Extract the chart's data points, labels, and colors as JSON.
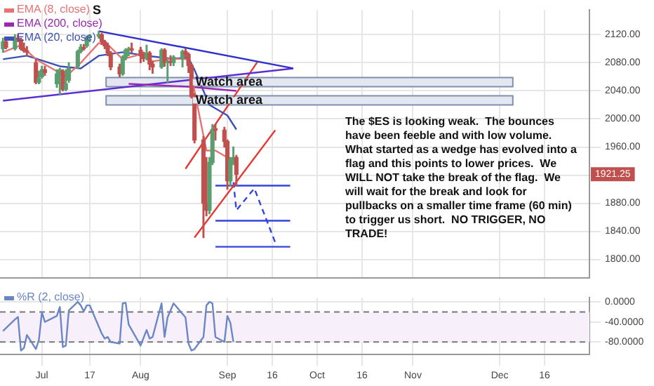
{
  "chart_data": [
    {
      "type": "candlestick",
      "x": [
        "--06-18",
        "--06-19",
        "--06-22",
        "--06-23",
        "--06-24",
        "--06-25",
        "--06-26",
        "--06-29",
        "--06-30",
        "--07-01",
        "--07-02",
        "--07-06",
        "--07-07",
        "--07-08",
        "--07-09",
        "--07-10",
        "--07-13",
        "--07-14",
        "--07-15",
        "--07-16",
        "--07-17",
        "--07-20",
        "--07-21",
        "--07-22",
        "--07-23",
        "--07-24",
        "--07-27",
        "--07-28",
        "--07-29",
        "--07-30",
        "--07-31",
        "--08-03",
        "--08-04",
        "--08-05",
        "--08-06",
        "--08-07",
        "--08-10",
        "--08-11",
        "--08-12",
        "--08-13",
        "--08-14",
        "--08-17",
        "--08-18",
        "--08-19",
        "--08-20",
        "--08-21",
        "--08-24",
        "--08-25",
        "--08-26",
        "--08-27",
        "--08-28",
        "--08-31",
        "--09-01",
        "--09-02",
        "--09-03",
        "--09-04"
      ],
      "ohlc": [
        [
          2100,
          2115,
          2095,
          2110
        ],
        [
          2110,
          2112,
          2100,
          2102
        ],
        [
          2100,
          2120,
          2098,
          2115
        ],
        [
          2115,
          2120,
          2110,
          2113
        ],
        [
          2113,
          2115,
          2098,
          2100
        ],
        [
          2100,
          2108,
          2095,
          2097
        ],
        [
          2097,
          2103,
          2090,
          2095
        ],
        [
          2080,
          2085,
          2050,
          2052
        ],
        [
          2052,
          2068,
          2050,
          2058
        ],
        [
          2060,
          2075,
          2058,
          2070
        ],
        [
          2070,
          2075,
          2062,
          2066
        ],
        [
          2050,
          2070,
          2045,
          2064
        ],
        [
          2064,
          2072,
          2035,
          2070
        ],
        [
          2068,
          2070,
          2040,
          2042
        ],
        [
          2042,
          2070,
          2040,
          2050
        ],
        [
          2055,
          2080,
          2052,
          2072
        ],
        [
          2075,
          2098,
          2072,
          2096
        ],
        [
          2096,
          2106,
          2094,
          2102
        ],
        [
          2102,
          2106,
          2098,
          2100
        ],
        [
          2104,
          2118,
          2102,
          2116
        ],
        [
          2116,
          2120,
          2110,
          2118
        ],
        [
          2118,
          2125,
          2115,
          2120
        ],
        [
          2120,
          2122,
          2106,
          2110
        ],
        [
          2110,
          2112,
          2100,
          2104
        ],
        [
          2104,
          2108,
          2090,
          2094
        ],
        [
          2094,
          2096,
          2070,
          2074
        ],
        [
          2074,
          2078,
          2060,
          2064
        ],
        [
          2064,
          2090,
          2062,
          2088
        ],
        [
          2088,
          2100,
          2084,
          2098
        ],
        [
          2098,
          2102,
          2090,
          2100
        ],
        [
          2100,
          2108,
          2095,
          2098
        ],
        [
          2098,
          2102,
          2080,
          2090
        ],
        [
          2090,
          2095,
          2082,
          2086
        ],
        [
          2086,
          2105,
          2084,
          2094
        ],
        [
          2094,
          2096,
          2070,
          2078
        ],
        [
          2078,
          2082,
          2065,
          2074
        ],
        [
          2074,
          2100,
          2072,
          2098
        ],
        [
          2098,
          2100,
          2075,
          2080
        ],
        [
          2080,
          2084,
          2052,
          2082
        ],
        [
          2082,
          2090,
          2076,
          2080
        ],
        [
          2080,
          2090,
          2076,
          2088
        ],
        [
          2086,
          2098,
          2074,
          2096
        ],
        [
          2096,
          2100,
          2088,
          2092
        ],
        [
          2092,
          2094,
          2066,
          2076
        ],
        [
          2076,
          2078,
          2030,
          2032
        ],
        [
          2032,
          2036,
          1966,
          1970
        ],
        [
          1970,
          1975,
          1831,
          1880
        ],
        [
          1880,
          1945,
          1862,
          1870
        ],
        [
          1870,
          1945,
          1865,
          1938
        ],
        [
          1938,
          1992,
          1935,
          1985
        ],
        [
          1985,
          1992,
          1970,
          1984
        ],
        [
          1984,
          1988,
          1960,
          1968
        ],
        [
          1968,
          1970,
          1900,
          1912
        ],
        [
          1912,
          1945,
          1905,
          1942
        ],
        [
          1942,
          1960,
          1935,
          1945
        ],
        [
          1945,
          1948,
          1905,
          1921.25
        ]
      ],
      "series": [
        {
          "name": "EMA (8, close)",
          "type": "line",
          "color": "#e57373",
          "x": [
            "--06-18",
            "--06-24",
            "--06-29",
            "--07-06",
            "--07-09",
            "--07-14",
            "--07-20",
            "--07-23",
            "--07-28",
            "--08-03",
            "--08-07",
            "--08-13",
            "--08-19",
            "--08-21",
            "--08-25",
            "--08-28",
            "--09-01",
            "--09-04"
          ],
          "values": [
            2095,
            2105,
            2085,
            2068,
            2060,
            2080,
            2108,
            2106,
            2085,
            2092,
            2082,
            2086,
            2085,
            2040,
            1955,
            1955,
            1945,
            1935
          ]
        },
        {
          "name": "EMA (200, close)",
          "type": "line",
          "color": "#9c27b0",
          "x": [
            "--07-30",
            "--08-19",
            "--09-04"
          ],
          "values": [
            2050,
            2046,
            2040
          ]
        },
        {
          "name": "EMA (20, close)",
          "type": "line",
          "color": "#3f51b5",
          "x": [
            "--06-18",
            "--06-26",
            "--07-07",
            "--07-14",
            "--07-20",
            "--07-28",
            "--08-05",
            "--08-13",
            "--08-19",
            "--08-21",
            "--08-26",
            "--09-01",
            "--09-04"
          ],
          "values": [
            2085,
            2090,
            2075,
            2072,
            2090,
            2095,
            2090,
            2086,
            2087,
            2070,
            2020,
            2005,
            1985
          ]
        },
        {
          "type": "line",
          "color": "#2f2fd0",
          "x": [
            "--07-20",
            "--09-23"
          ],
          "values": [
            2125,
            2072
          ]
        },
        {
          "type": "line",
          "color": "#5b2fd0",
          "x": [
            "--06-18",
            "--09-23"
          ],
          "values": [
            2026,
            2072
          ]
        },
        {
          "type": "line",
          "color": "#e53935",
          "x": [
            "--08-18",
            "--09-11"
          ],
          "values": [
            1929,
            2081
          ]
        },
        {
          "type": "line",
          "color": "#e53935",
          "x": [
            "--08-21",
            "--09-17"
          ],
          "values": [
            1831,
            1984
          ]
        },
        {
          "type": "line",
          "color": "#3344dd",
          "x": [
            "--08-28",
            "--09-22"
          ],
          "values": [
            1905,
            1905
          ]
        },
        {
          "type": "line",
          "color": "#3344dd",
          "x": [
            "--08-28",
            "--09-22"
          ],
          "values": [
            1855,
            1855
          ]
        },
        {
          "type": "line",
          "color": "#3344dd",
          "x": [
            "--08-28",
            "--09-22"
          ],
          "values": [
            1818,
            1818
          ]
        },
        {
          "type": "line",
          "color": "#3344dd",
          "line_style": "dashed",
          "x": [
            "--09-03",
            "--09-04",
            "--09-10",
            "--09-17"
          ],
          "values": [
            1910,
            1870,
            1901,
            1824
          ]
        }
      ],
      "bands": [
        {
          "axis": "y",
          "from": 2046,
          "to": 2059,
          "label": "Watch area",
          "color": "#e4e7ef"
        },
        {
          "axis": "y",
          "from": 2020,
          "to": 2033,
          "label": "Watch area",
          "color": "#e4e7ef"
        }
      ],
      "annotations": [
        "S",
        {
          "text": "1921.25",
          "y": 1921.25
        },
        "The $ES is looking weak.  The bounces have been feeble and with low volume.  What started as a wedge has evolved into a flag and this points to lower prices.  We WILL NOT take the break of the flag.  We will wait for the break and look for pullbacks on a smaller time frame (60 min) to trigger us short.  NO TRIGGER, NO TRADE!"
      ],
      "xlim": [
        "--06-17",
        "--12-31"
      ],
      "xticks": [
        {
          "value": "--07-01",
          "label": null
        },
        {
          "value": "--07-17",
          "label": null
        },
        {
          "value": "--08-03",
          "label": null
        },
        {
          "value": "--09-01",
          "label": null
        },
        {
          "value": "--09-16",
          "label": null
        },
        {
          "value": "--10-01",
          "label": null
        },
        {
          "value": "--10-16",
          "label": null
        },
        {
          "value": "--11-02",
          "label": null
        },
        {
          "value": "--12-01",
          "label": null
        },
        {
          "value": "--12-16",
          "label": null
        }
      ],
      "ylim": [
        1774,
        2155
      ],
      "yticks": [
        {
          "value": 1800,
          "label": "1800.00"
        },
        {
          "value": 1840,
          "label": "1840.00"
        },
        {
          "value": 1880,
          "label": "1880.00"
        },
        {
          "value": 1920,
          "label": null
        },
        {
          "value": 1960,
          "label": "1960.00"
        },
        {
          "value": 2000,
          "label": "2000.00"
        },
        {
          "value": 2040,
          "label": "2040.00"
        },
        {
          "value": 2080,
          "label": "2080.00"
        },
        {
          "value": 2120,
          "label": "2120.00"
        }
      ],
      "tick_labels": "y",
      "grid": true,
      "legend": "top left"
    },
    {
      "type": "line",
      "series": [
        {
          "name": "%R (2, close)",
          "color": "#6a86c4",
          "x": [
            "--06-18",
            "--06-22",
            "--06-23",
            "--06-24",
            "--06-25",
            "--06-26",
            "--06-29",
            "--06-30",
            "--07-01",
            "--07-02",
            "--07-06",
            "--07-07",
            "--07-08",
            "--07-09",
            "--07-10",
            "--07-13",
            "--07-14",
            "--07-15",
            "--07-16",
            "--07-17",
            "--07-21",
            "--07-22",
            "--07-23",
            "--07-24",
            "--07-27",
            "--07-28",
            "--07-29",
            "--07-30",
            "--08-03",
            "--08-05",
            "--08-06",
            "--08-07",
            "--08-10",
            "--08-11",
            "--08-12",
            "--08-13",
            "--08-14",
            "--08-18",
            "--08-19",
            "--08-20",
            "--08-21",
            "--08-24",
            "--08-25",
            "--08-26",
            "--08-27",
            "--08-28",
            "--08-31",
            "--09-01",
            "--09-02",
            "--09-03"
          ],
          "values": [
            -58,
            -35,
            -30,
            -97,
            -92,
            -66,
            -94,
            -76,
            -21,
            -40,
            -28,
            -10,
            -90,
            -87,
            -17,
            0,
            -7,
            -19,
            -7,
            -7,
            -63,
            -73,
            -70,
            -80,
            -83,
            -3,
            -2,
            -45,
            -87,
            -56,
            -73,
            -70,
            -3,
            -70,
            -31,
            -17,
            -3,
            -31,
            -83,
            -97,
            -94,
            -70,
            -7,
            0,
            -3,
            -70,
            -80,
            -28,
            -42,
            -80
          ]
        }
      ],
      "ref_lines": [
        {
          "axis": "y",
          "value": -20,
          "color": "#777777",
          "line_style": "dashed"
        },
        {
          "axis": "y",
          "value": -80,
          "color": "#777777",
          "line_style": "dashed"
        }
      ],
      "bands": [
        {
          "axis": "y",
          "from": -80,
          "to": -20,
          "color": "#f7f0fb"
        }
      ],
      "xlim": [
        "--06-17",
        "--12-31"
      ],
      "xticks": [
        {
          "value": "--07-01",
          "label": "Jul"
        },
        {
          "value": "--07-17",
          "label": "17"
        },
        {
          "value": "--08-03",
          "label": "Aug"
        },
        {
          "value": "--09-01",
          "label": "Sep"
        },
        {
          "value": "--09-16",
          "label": "16"
        },
        {
          "value": "--10-01",
          "label": "Oct"
        },
        {
          "value": "--10-16",
          "label": "16"
        },
        {
          "value": "--11-02",
          "label": "Nov"
        },
        {
          "value": "--12-01",
          "label": "Dec"
        },
        {
          "value": "--12-16",
          "label": "16"
        }
      ],
      "ylim": [
        -105,
        8
      ],
      "yticks": [
        {
          "value": 0,
          "label": "0.0000"
        },
        {
          "value": -40,
          "label": "-40.0000"
        },
        {
          "value": -80,
          "label": "-80.0000"
        }
      ],
      "grid": true,
      "legend": "top left"
    }
  ]
}
